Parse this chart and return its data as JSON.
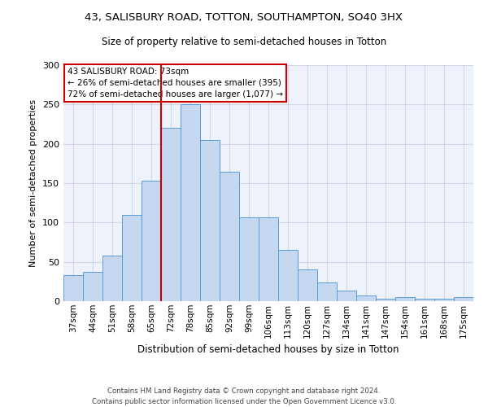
{
  "title_line1": "43, SALISBURY ROAD, TOTTON, SOUTHAMPTON, SO40 3HX",
  "title_line2": "Size of property relative to semi-detached houses in Totton",
  "xlabel": "Distribution of semi-detached houses by size in Totton",
  "ylabel": "Number of semi-detached properties",
  "categories": [
    "37sqm",
    "44sqm",
    "51sqm",
    "58sqm",
    "65sqm",
    "72sqm",
    "78sqm",
    "85sqm",
    "92sqm",
    "99sqm",
    "106sqm",
    "113sqm",
    "120sqm",
    "127sqm",
    "134sqm",
    "141sqm",
    "147sqm",
    "154sqm",
    "161sqm",
    "168sqm",
    "175sqm"
  ],
  "bar_heights": [
    33,
    37,
    58,
    110,
    153,
    220,
    250,
    205,
    165,
    107,
    107,
    65,
    40,
    24,
    13,
    7,
    3,
    5,
    3,
    3,
    5
  ],
  "annotation_text_line1": "43 SALISBURY ROAD: 73sqm",
  "annotation_text_line2": "← 26% of semi-detached houses are smaller (395)",
  "annotation_text_line3": "72% of semi-detached houses are larger (1,077) →",
  "bar_color": "#c5d8f0",
  "bar_edge_color": "#5b9bd5",
  "vline_color": "#cc0000",
  "annotation_box_edge_color": "#cc0000",
  "grid_color": "#d0d8e8",
  "background_color": "#eef2fb",
  "ylim": [
    0,
    300
  ],
  "yticks": [
    0,
    50,
    100,
    150,
    200,
    250,
    300
  ],
  "footnote_line1": "Contains HM Land Registry data © Crown copyright and database right 2024.",
  "footnote_line2": "Contains public sector information licensed under the Open Government Licence v3.0."
}
